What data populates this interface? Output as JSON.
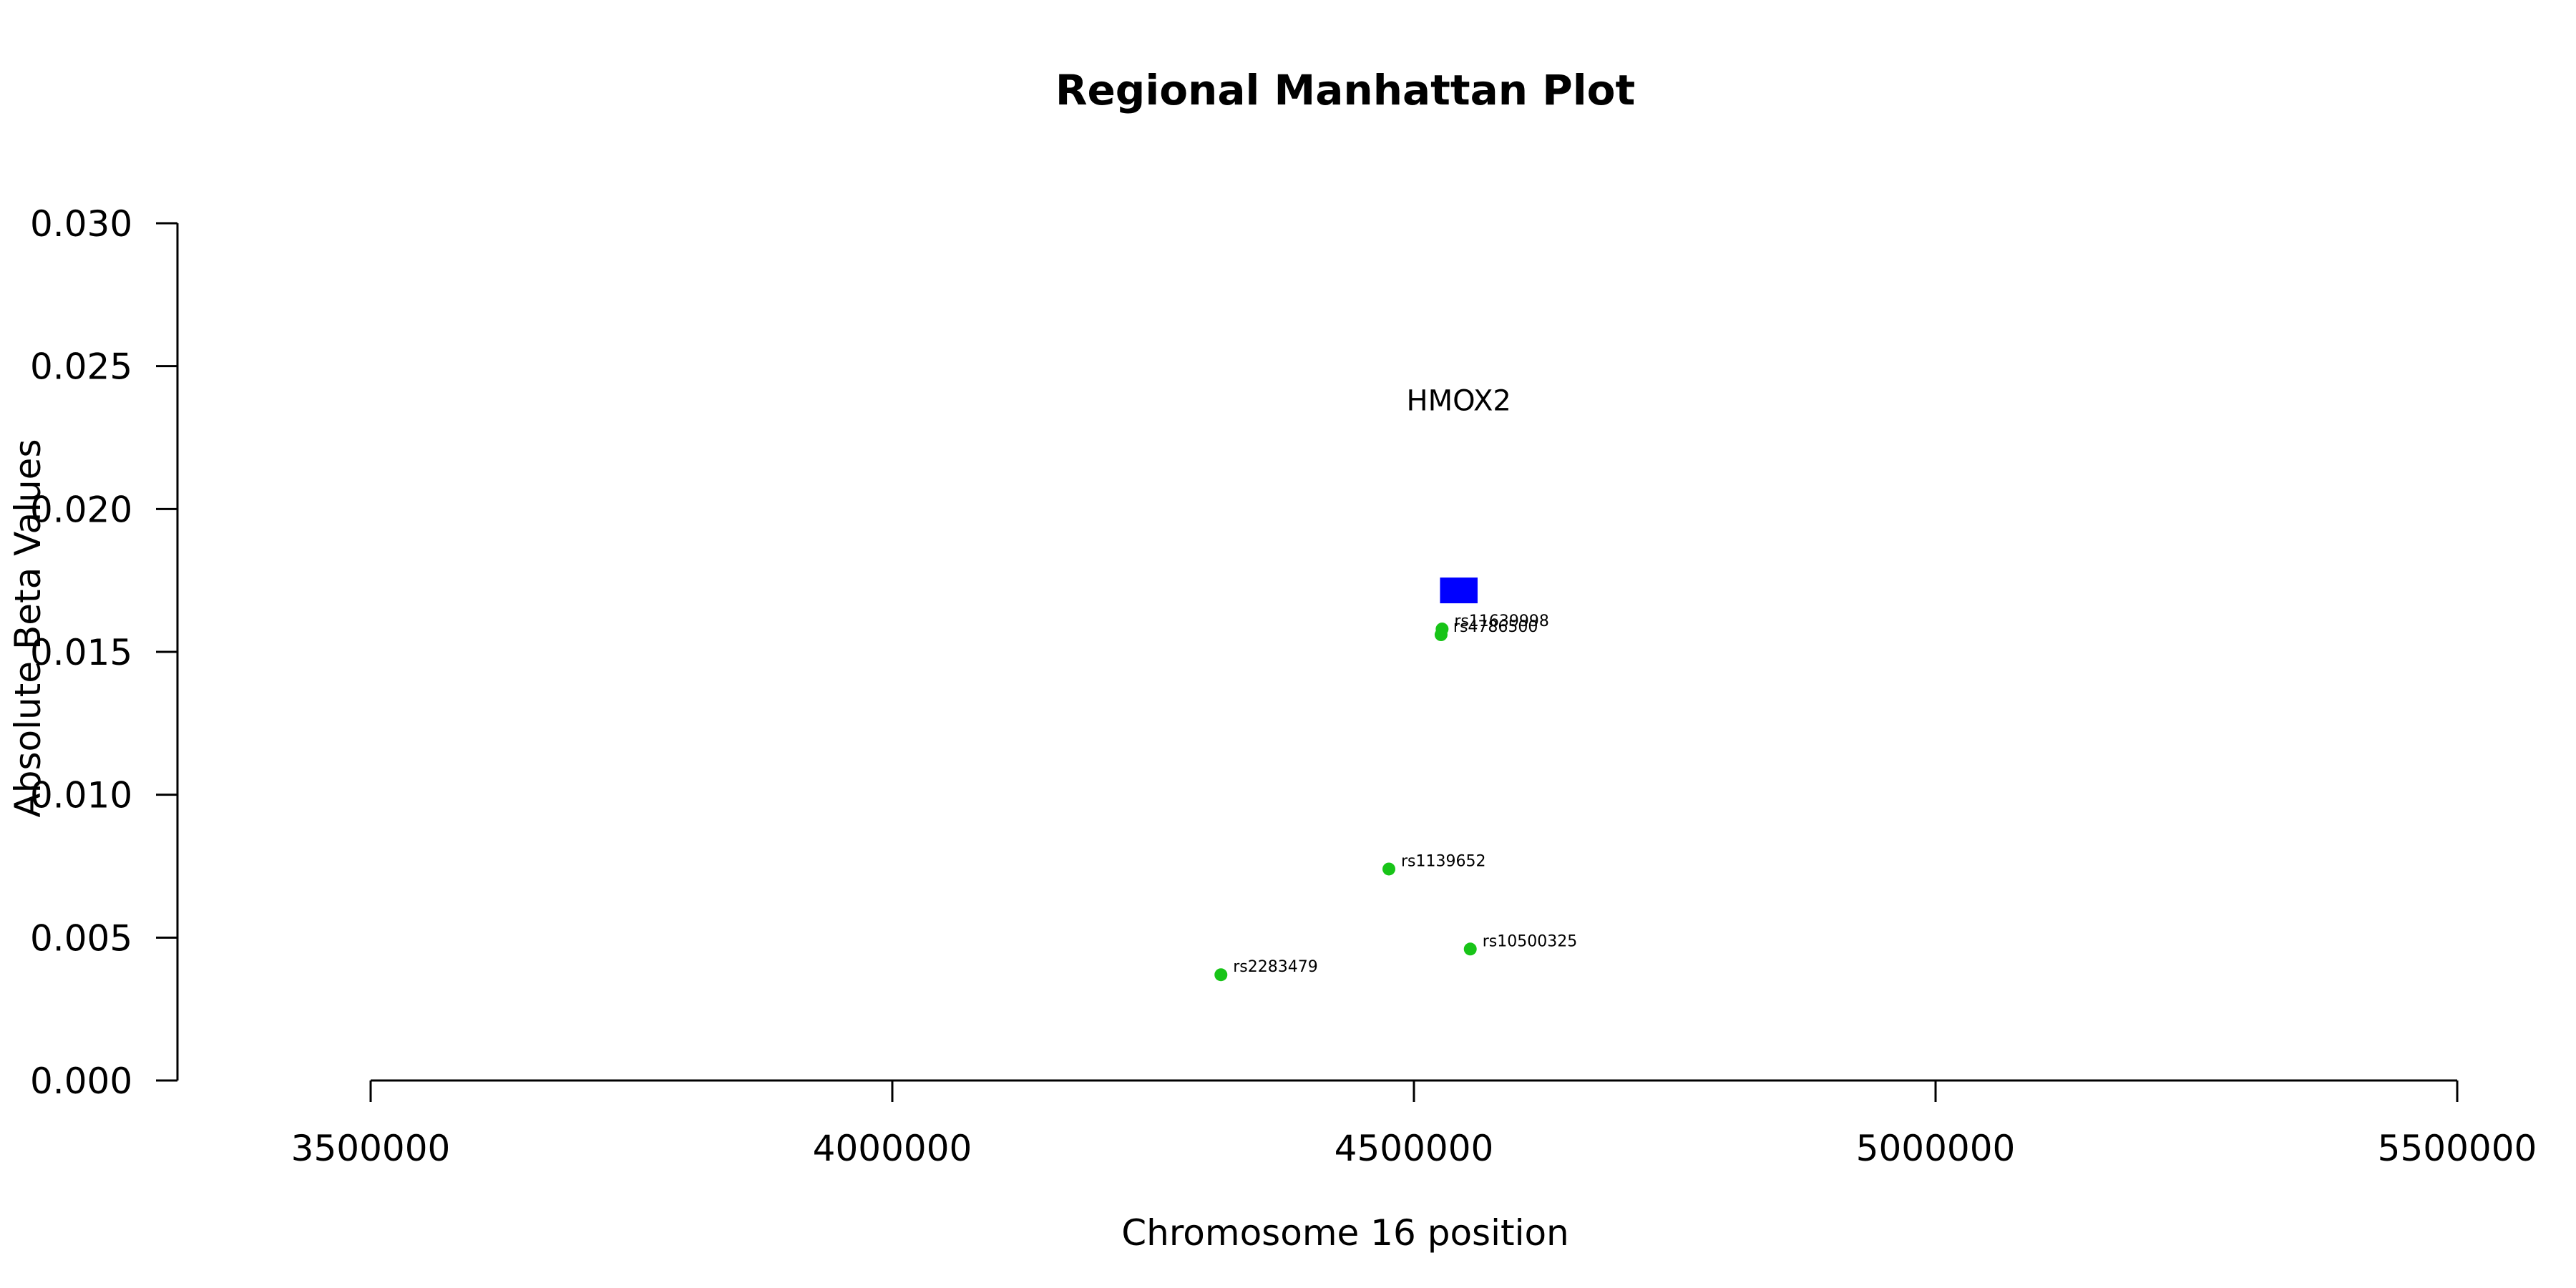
{
  "chart_data": {
    "type": "scatter",
    "title": "Regional Manhattan Plot",
    "xlabel": "Chromosome 16 position",
    "ylabel": "Absolute Beta Values",
    "xlim": [
      3500000,
      5500000
    ],
    "ylim": [
      0,
      0.03
    ],
    "x_ticks": [
      3500000,
      4000000,
      4500000,
      5000000,
      5500000
    ],
    "x_tick_labels": [
      "3500000",
      "4000000",
      "4500000",
      "5000000",
      "5500000"
    ],
    "y_ticks": [
      0,
      0.005,
      0.01,
      0.015,
      0.02,
      0.025,
      0.03
    ],
    "y_tick_labels": [
      "0.000",
      "0.005",
      "0.010",
      "0.015",
      "0.020",
      "0.025",
      "0.030"
    ],
    "grid": false,
    "point_color": "#18c418",
    "gene_color": "#0000ff",
    "points": [
      {
        "label": "rs11639998",
        "x": 4527000,
        "y": 0.0158
      },
      {
        "label": "rs4786500",
        "x": 4526000,
        "y": 0.0156
      },
      {
        "label": "rs1139652",
        "x": 4476000,
        "y": 0.0074
      },
      {
        "label": "rs10500325",
        "x": 4554000,
        "y": 0.0046
      },
      {
        "label": "rs2283479",
        "x": 4315000,
        "y": 0.0037
      }
    ],
    "genes": [
      {
        "name": "HMOX2",
        "start": 4525000,
        "end": 4561000,
        "y_low": 0.0167,
        "y_high": 0.0176,
        "label_y": 0.0238
      }
    ]
  }
}
